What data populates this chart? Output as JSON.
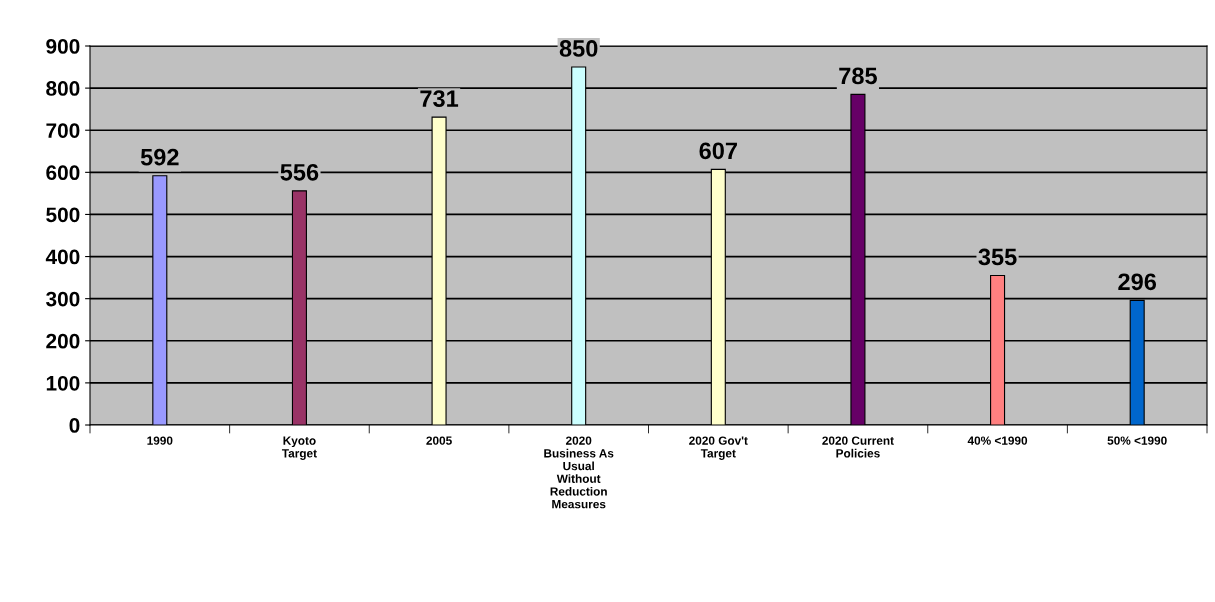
{
  "chart_data": {
    "type": "bar",
    "categories": [
      "1990",
      "Kyoto\nTarget",
      "2005",
      "2020\nBusiness As\nUsual\nWithout\nReduction\nMeasures",
      "2020 Gov't\nTarget",
      "2020 Current\nPolicies",
      "40% <1990",
      "50% <1990"
    ],
    "values": [
      592,
      556,
      731,
      850,
      607,
      785,
      355,
      296
    ],
    "colors": [
      "#9999ff",
      "#993366",
      "#ffffcc",
      "#ccffff",
      "#ffffcc",
      "#660066",
      "#ff8080",
      "#0066cc"
    ],
    "ylim": [
      0,
      900
    ],
    "yticks": [
      0,
      100,
      200,
      300,
      400,
      500,
      600,
      700,
      800,
      900
    ],
    "grid": "y",
    "data_labels": true
  }
}
